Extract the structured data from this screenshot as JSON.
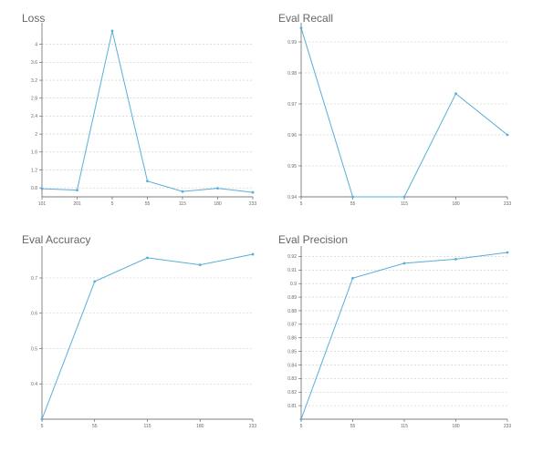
{
  "colors": {
    "line": "#5aaed8",
    "axis": "#555555",
    "grid": "#c8c8c8",
    "title": "#666666"
  },
  "chart_data": [
    {
      "id": "loss",
      "type": "line",
      "title": "Loss",
      "categories": [
        "101",
        "201",
        "5",
        "55",
        "115",
        "180",
        "233"
      ],
      "values": [
        0.78,
        0.75,
        4.3,
        0.95,
        0.72,
        0.79,
        0.7
      ],
      "yticks": [
        "0.8",
        "1.2",
        "1.6",
        "2",
        "2.4",
        "2.8",
        "3.2",
        "3.6",
        "4"
      ],
      "ylim": [
        0.6,
        4.4
      ],
      "grid": true
    },
    {
      "id": "eval-recall",
      "type": "line",
      "title": "Eval Recall",
      "categories": [
        "5",
        "55",
        "115",
        "180",
        "233"
      ],
      "values": [
        0.9945,
        0.94,
        0.94,
        0.9733,
        0.96
      ],
      "yticks": [
        "0.94",
        "0.95",
        "0.96",
        "0.97",
        "0.98",
        "0.99"
      ],
      "ylim": [
        0.94,
        0.995
      ],
      "grid": true
    },
    {
      "id": "eval-accuracy",
      "type": "line",
      "title": "Eval Accuracy",
      "categories": [
        "5",
        "55",
        "115",
        "180",
        "233"
      ],
      "values": [
        0.3,
        0.69,
        0.757,
        0.737,
        0.767
      ],
      "yticks": [
        "0.4",
        "0.5",
        "0.6",
        "0.7"
      ],
      "ylim": [
        0.3,
        0.78
      ],
      "grid": true
    },
    {
      "id": "eval-precision",
      "type": "line",
      "title": "Eval Precision",
      "categories": [
        "5",
        "55",
        "115",
        "180",
        "233"
      ],
      "values": [
        0.8,
        0.904,
        0.915,
        0.918,
        0.923
      ],
      "yticks": [
        "0.81",
        "0.82",
        "0.83",
        "0.84",
        "0.85",
        "0.86",
        "0.87",
        "0.88",
        "0.89",
        "0.9",
        "0.91",
        "0.92"
      ],
      "ylim": [
        0.8,
        0.925
      ],
      "grid": true
    }
  ]
}
